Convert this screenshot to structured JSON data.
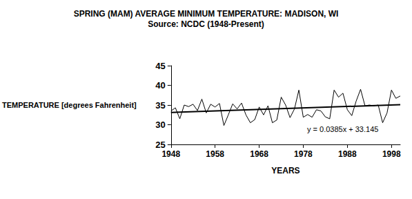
{
  "chart_data": {
    "type": "line",
    "title": "SPRING (MAM) AVERAGE MINIMUM TEMPERATURE: MADISON, WI",
    "subtitle": "Source: NCDC (1948-Present)",
    "xlabel": "YEARS",
    "ylabel": "TEMPERATURE [degrees Fahrenheit]",
    "annotation": "y = 0.0385x + 33.145",
    "x": [
      1948,
      1949,
      1950,
      1951,
      1952,
      1953,
      1954,
      1955,
      1956,
      1957,
      1958,
      1959,
      1960,
      1961,
      1962,
      1963,
      1964,
      1965,
      1966,
      1967,
      1968,
      1969,
      1970,
      1971,
      1972,
      1973,
      1974,
      1975,
      1976,
      1977,
      1978,
      1979,
      1980,
      1981,
      1982,
      1983,
      1984,
      1985,
      1986,
      1987,
      1988,
      1989,
      1990,
      1991,
      1992,
      1993,
      1994,
      1995,
      1996,
      1997,
      1998,
      1999,
      2000
    ],
    "series": [
      {
        "color": "#000000",
        "line_style": "solid",
        "marker": "none",
        "values": [
          33.5,
          34.3,
          31.5,
          35,
          34.6,
          35.2,
          33.6,
          36.5,
          33,
          35.2,
          34.5,
          35.4,
          29.8,
          32.5,
          35.3,
          34,
          35.5,
          32.5,
          30.5,
          31.3,
          34.5,
          32.5,
          34.8,
          30.5,
          31.2,
          37,
          35,
          31.8,
          34,
          38.8,
          31.9,
          32.6,
          31.9,
          33.8,
          33.5,
          32,
          31.5,
          38.8,
          37,
          38,
          33.8,
          32.3,
          36,
          39,
          34.8,
          35,
          34.8,
          35,
          30.5,
          33,
          38.8,
          36.7,
          37.3
        ]
      },
      {
        "color": "#000000",
        "line_style": "solid",
        "marker": "none",
        "x": [
          1948,
          2000
        ],
        "values": [
          33.1,
          35.1
        ]
      }
    ],
    "xlim": [
      1948,
      2000
    ],
    "xticks": [
      1948,
      1958,
      1968,
      1978,
      1988,
      1998
    ],
    "ylim": [
      25,
      45
    ],
    "yticks": [
      25,
      30,
      35,
      40,
      45
    ],
    "grid": false
  }
}
